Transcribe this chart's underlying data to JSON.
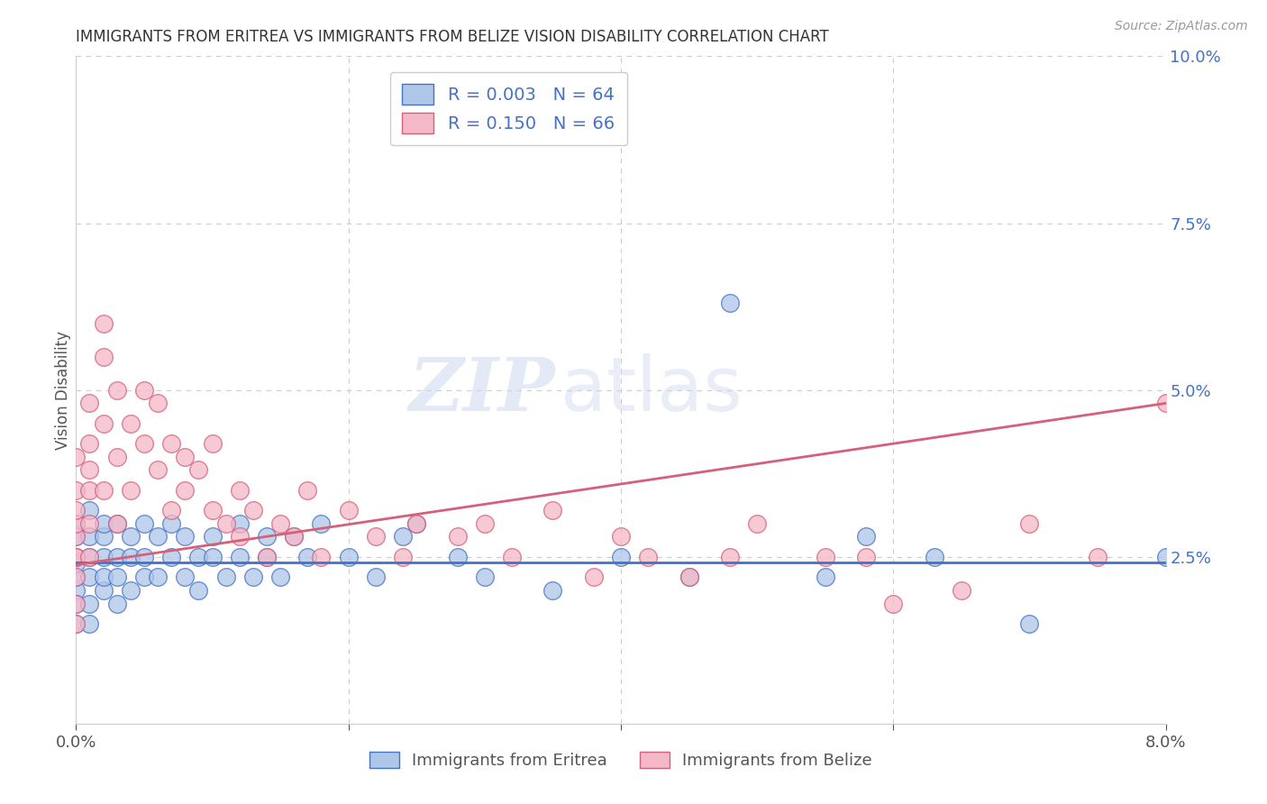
{
  "title": "IMMIGRANTS FROM ERITREA VS IMMIGRANTS FROM BELIZE VISION DISABILITY CORRELATION CHART",
  "source": "Source: ZipAtlas.com",
  "ylabel": "Vision Disability",
  "legend_bottom": [
    "Immigrants from Eritrea",
    "Immigrants from Belize"
  ],
  "R_eritrea": "0.003",
  "N_eritrea": "64",
  "R_belize": "0.150",
  "N_belize": "66",
  "color_eritrea": "#aec6e8",
  "color_belize": "#f4b8c8",
  "line_color_eritrea": "#4472c4",
  "line_color_belize": "#d4607a",
  "xlim": [
    0.0,
    0.08
  ],
  "ylim": [
    0.0,
    0.1
  ],
  "eritrea_x": [
    0.0,
    0.0,
    0.0,
    0.0,
    0.0,
    0.0,
    0.0,
    0.0,
    0.001,
    0.001,
    0.001,
    0.001,
    0.001,
    0.001,
    0.002,
    0.002,
    0.002,
    0.002,
    0.002,
    0.003,
    0.003,
    0.003,
    0.003,
    0.004,
    0.004,
    0.004,
    0.005,
    0.005,
    0.005,
    0.006,
    0.006,
    0.007,
    0.007,
    0.008,
    0.008,
    0.009,
    0.009,
    0.01,
    0.01,
    0.011,
    0.012,
    0.012,
    0.013,
    0.014,
    0.014,
    0.015,
    0.016,
    0.017,
    0.018,
    0.02,
    0.022,
    0.024,
    0.025,
    0.028,
    0.03,
    0.035,
    0.04,
    0.045,
    0.048,
    0.055,
    0.058,
    0.063,
    0.07,
    0.08
  ],
  "eritrea_y": [
    0.02,
    0.022,
    0.025,
    0.018,
    0.028,
    0.015,
    0.03,
    0.024,
    0.018,
    0.025,
    0.022,
    0.028,
    0.015,
    0.032,
    0.02,
    0.025,
    0.028,
    0.022,
    0.03,
    0.025,
    0.018,
    0.03,
    0.022,
    0.028,
    0.025,
    0.02,
    0.022,
    0.03,
    0.025,
    0.028,
    0.022,
    0.025,
    0.03,
    0.022,
    0.028,
    0.025,
    0.02,
    0.028,
    0.025,
    0.022,
    0.025,
    0.03,
    0.022,
    0.028,
    0.025,
    0.022,
    0.028,
    0.025,
    0.03,
    0.025,
    0.022,
    0.028,
    0.03,
    0.025,
    0.022,
    0.02,
    0.025,
    0.022,
    0.063,
    0.022,
    0.028,
    0.025,
    0.015,
    0.025
  ],
  "belize_x": [
    0.0,
    0.0,
    0.0,
    0.0,
    0.0,
    0.0,
    0.0,
    0.0,
    0.0,
    0.0,
    0.001,
    0.001,
    0.001,
    0.001,
    0.001,
    0.001,
    0.002,
    0.002,
    0.002,
    0.002,
    0.003,
    0.003,
    0.003,
    0.004,
    0.004,
    0.005,
    0.005,
    0.006,
    0.006,
    0.007,
    0.007,
    0.008,
    0.008,
    0.009,
    0.01,
    0.01,
    0.011,
    0.012,
    0.012,
    0.013,
    0.014,
    0.015,
    0.016,
    0.017,
    0.018,
    0.02,
    0.022,
    0.024,
    0.025,
    0.028,
    0.03,
    0.032,
    0.035,
    0.038,
    0.04,
    0.042,
    0.045,
    0.048,
    0.05,
    0.055,
    0.058,
    0.06,
    0.065,
    0.07,
    0.075,
    0.08
  ],
  "belize_y": [
    0.025,
    0.028,
    0.022,
    0.03,
    0.035,
    0.032,
    0.018,
    0.04,
    0.015,
    0.025,
    0.042,
    0.038,
    0.048,
    0.03,
    0.025,
    0.035,
    0.06,
    0.055,
    0.035,
    0.045,
    0.04,
    0.03,
    0.05,
    0.045,
    0.035,
    0.05,
    0.042,
    0.038,
    0.048,
    0.032,
    0.042,
    0.035,
    0.04,
    0.038,
    0.032,
    0.042,
    0.03,
    0.028,
    0.035,
    0.032,
    0.025,
    0.03,
    0.028,
    0.035,
    0.025,
    0.032,
    0.028,
    0.025,
    0.03,
    0.028,
    0.03,
    0.025,
    0.032,
    0.022,
    0.028,
    0.025,
    0.022,
    0.025,
    0.03,
    0.025,
    0.025,
    0.018,
    0.02,
    0.03,
    0.025,
    0.048
  ],
  "watermark_zip": "ZIP",
  "watermark_atlas": "atlas",
  "background_color": "#ffffff",
  "grid_color": "#cccccc",
  "title_color": "#333333",
  "axis_color": "#4472c4",
  "trend_eritrea_start": 0.0242,
  "trend_eritrea_end": 0.0242,
  "trend_belize_start": 0.0238,
  "trend_belize_end": 0.048
}
